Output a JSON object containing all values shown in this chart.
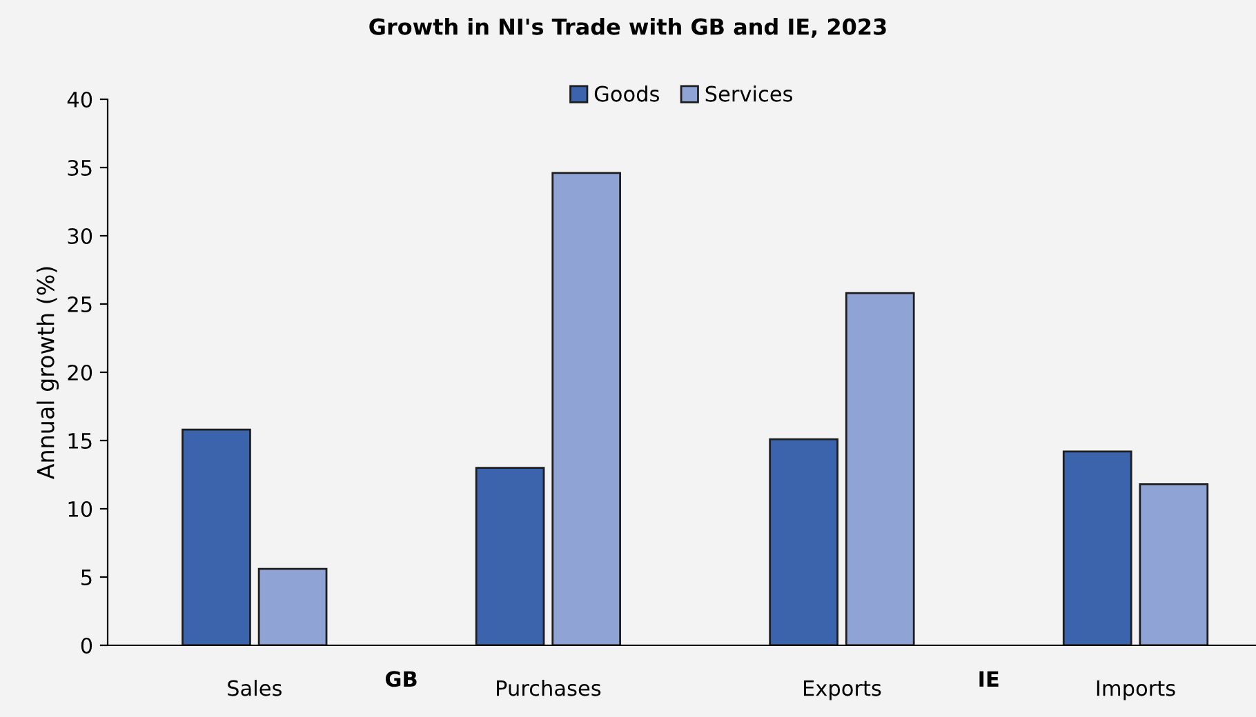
{
  "chart_data": {
    "type": "bar",
    "title": "Growth in NI's Trade with GB and IE, 2023",
    "ylabel": "Annual growth (%)",
    "categories": [
      "Sales",
      "Purchases",
      "Exports",
      "Imports"
    ],
    "series": [
      {
        "name": "Goods",
        "color": "#3c64ad",
        "values": [
          15.8,
          13.0,
          15.1,
          14.2
        ]
      },
      {
        "name": "Services",
        "color": "#8fa4d4",
        "values": [
          5.6,
          34.6,
          25.8,
          11.8
        ]
      }
    ],
    "annotations": [
      "GB",
      "IE"
    ],
    "ylim": [
      0,
      40
    ],
    "yticks": [
      0,
      5,
      10,
      15,
      20,
      25,
      30,
      35,
      40
    ],
    "grid": false,
    "legend": "top"
  }
}
